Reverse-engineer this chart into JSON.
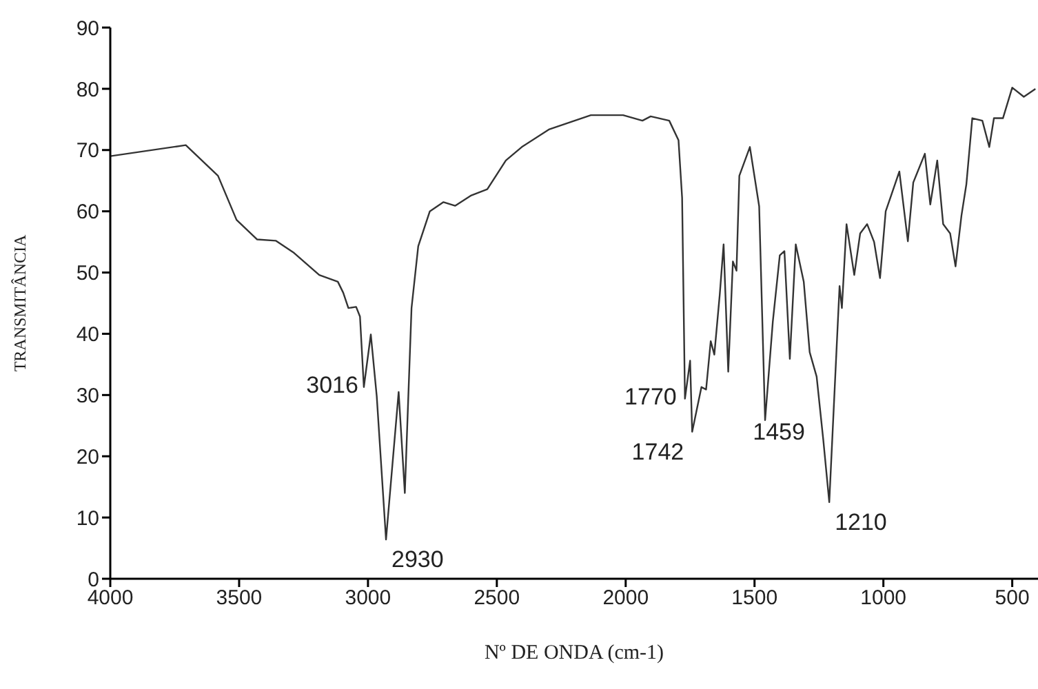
{
  "chart_data": {
    "type": "line",
    "xlabel": "Nº DE ONDA (cm-1)",
    "ylabel": "TRANSMITÂNCIA",
    "xlim": [
      4000,
      400
    ],
    "xticks": [
      4000,
      3500,
      3000,
      2500,
      2000,
      1500,
      1000,
      500
    ],
    "ylim": [
      0,
      90
    ],
    "yticks": [
      0,
      10,
      20,
      30,
      40,
      50,
      60,
      70,
      80,
      90
    ],
    "grid": false,
    "legend": false,
    "marker": "none",
    "line_style": "solid",
    "series": [
      {
        "color": "#333333",
        "x": [
          4000,
          3707,
          3582,
          3510,
          3430,
          3358,
          3287,
          3189,
          3117,
          3096,
          3076,
          3046,
          3031,
          3016,
          2989,
          2966,
          2930,
          2881,
          2857,
          2831,
          2805,
          2760,
          2707,
          2662,
          2599,
          2537,
          2465,
          2403,
          2296,
          2135,
          2010,
          1935,
          1903,
          1831,
          1795,
          1781,
          1770,
          1750,
          1742,
          1706,
          1688,
          1670,
          1656,
          1635,
          1620,
          1602,
          1584,
          1570,
          1559,
          1518,
          1482,
          1459,
          1429,
          1402,
          1384,
          1363,
          1340,
          1309,
          1286,
          1259,
          1233,
          1210,
          1170,
          1161,
          1143,
          1113,
          1090,
          1063,
          1036,
          1013,
          991,
          973,
          938,
          905,
          884,
          839,
          818,
          791,
          768,
          741,
          720,
          697,
          678,
          655,
          616,
          589,
          571,
          536,
          500,
          455,
          410
        ],
        "values": [
          69.0,
          70.8,
          65.8,
          58.6,
          55.4,
          55.2,
          53.2,
          49.6,
          48.5,
          46.7,
          44.2,
          44.4,
          42.8,
          31.3,
          39.9,
          29.8,
          6.4,
          30.5,
          14.0,
          44.2,
          54.3,
          60.0,
          61.5,
          60.9,
          62.6,
          63.6,
          68.3,
          70.5,
          73.4,
          75.7,
          75.7,
          74.8,
          75.5,
          74.8,
          71.6,
          62.2,
          29.4,
          35.6,
          24.0,
          31.3,
          30.9,
          38.8,
          36.6,
          46.4,
          54.6,
          33.8,
          51.8,
          50.3,
          65.8,
          70.5,
          60.8,
          25.9,
          42.0,
          52.8,
          53.5,
          35.9,
          54.6,
          48.5,
          37.0,
          33.0,
          22.6,
          12.5,
          47.8,
          44.2,
          57.9,
          49.6,
          56.4,
          57.9,
          55.0,
          49.1,
          60.0,
          62.2,
          66.5,
          55.1,
          64.7,
          69.4,
          61.1,
          68.3,
          57.9,
          56.4,
          51.0,
          59.3,
          64.4,
          75.2,
          74.8,
          70.5,
          75.2,
          75.2,
          80.2,
          78.7,
          80.0
        ]
      }
    ],
    "annotations": [
      {
        "text": "3016",
        "x": 3016,
        "y": 31.3
      },
      {
        "text": "2930",
        "x": 2930,
        "y": 6.4
      },
      {
        "text": "1770",
        "x": 1770,
        "y": 29.4
      },
      {
        "text": "1742",
        "x": 1742,
        "y": 24.0
      },
      {
        "text": "1459",
        "x": 1459,
        "y": 25.9
      },
      {
        "text": "1210",
        "x": 1210,
        "y": 12.5
      }
    ]
  }
}
